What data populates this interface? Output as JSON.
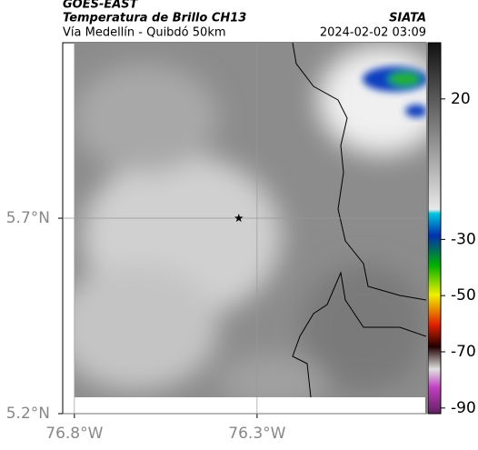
{
  "header": {
    "source": "GOES-EAST",
    "title": "Temperatura de Brillo CH13",
    "subtitle": "Vía Medellín - Quibdó 50km",
    "agency": "SIATA",
    "datetime": "2024-02-02 03:09"
  },
  "map": {
    "xlim": [
      -76.832,
      -75.837
    ],
    "ylim": [
      5.2,
      6.149
    ],
    "xticks": [
      {
        "value": -76.8,
        "label": "76.8°W"
      },
      {
        "value": -76.3,
        "label": "76.3°W"
      }
    ],
    "yticks": [
      {
        "value": 5.7,
        "label": "5.7°N"
      },
      {
        "value": 5.2,
        "label": "5.2°N"
      }
    ],
    "grid": true,
    "marker": {
      "lon": -76.35,
      "lat": 5.7
    }
  },
  "colorbar": {
    "lim": [
      -92,
      40
    ],
    "ticks": [
      20,
      -30,
      -50,
      -70,
      -90
    ]
  }
}
